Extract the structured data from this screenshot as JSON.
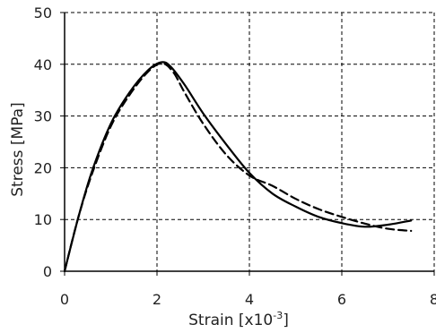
{
  "chart_data": {
    "type": "line",
    "title": "",
    "xlabel": "Strain [x10",
    "xlabel_exponent": "-3",
    "xlabel_suffix": "]",
    "ylabel": "Stress [MPa]",
    "xlim": [
      0,
      8
    ],
    "ylim": [
      0,
      50
    ],
    "x_ticks": [
      "0",
      "2",
      "4",
      "6",
      "8"
    ],
    "y_ticks": [
      "0",
      "10",
      "20",
      "30",
      "40",
      "50"
    ],
    "grid": true,
    "grid_style": "dashed",
    "legend": "none",
    "series": [
      {
        "style": "solid",
        "color": "#000000",
        "points": [
          [
            0,
            0
          ],
          [
            0.3,
            10.5
          ],
          [
            0.6,
            19.5
          ],
          [
            1.0,
            28.5
          ],
          [
            1.4,
            34.5
          ],
          [
            1.8,
            38.8
          ],
          [
            2.1,
            40.4
          ],
          [
            2.3,
            39.5
          ],
          [
            2.6,
            36.0
          ],
          [
            3.0,
            30.5
          ],
          [
            3.5,
            24.5
          ],
          [
            4.0,
            19.0
          ],
          [
            4.5,
            15.0
          ],
          [
            5.0,
            12.5
          ],
          [
            5.5,
            10.5
          ],
          [
            6.0,
            9.3
          ],
          [
            6.5,
            8.6
          ],
          [
            7.0,
            9.0
          ],
          [
            7.5,
            9.8
          ]
        ]
      },
      {
        "style": "dashed",
        "color": "#000000",
        "points": [
          [
            0,
            0
          ],
          [
            0.3,
            10.5
          ],
          [
            0.6,
            19.0
          ],
          [
            1.0,
            28.0
          ],
          [
            1.4,
            34.0
          ],
          [
            1.8,
            38.5
          ],
          [
            2.1,
            40.2
          ],
          [
            2.35,
            38.5
          ],
          [
            2.6,
            34.5
          ],
          [
            3.0,
            28.5
          ],
          [
            3.5,
            22.5
          ],
          [
            4.0,
            18.5
          ],
          [
            4.5,
            16.5
          ],
          [
            5.0,
            14.0
          ],
          [
            5.5,
            12.0
          ],
          [
            6.0,
            10.5
          ],
          [
            6.5,
            9.2
          ],
          [
            7.0,
            8.2
          ],
          [
            7.5,
            7.8
          ]
        ]
      }
    ]
  }
}
